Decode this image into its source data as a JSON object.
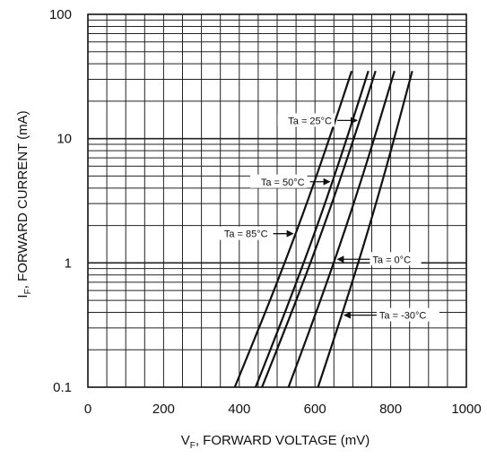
{
  "chart_data": {
    "type": "line",
    "title": "",
    "x_axis": {
      "label_main": "V",
      "label_sub": "F",
      "label_rest": ", FORWARD VOLTAGE (mV)",
      "range": [
        0,
        1000
      ],
      "ticks": [
        "0",
        "200",
        "400",
        "600",
        "800",
        "1000"
      ],
      "tick_values": [
        0,
        200,
        400,
        600,
        800,
        1000
      ]
    },
    "y_axis": {
      "label_main": "I",
      "label_sub": "F",
      "label_rest": ", FORWARD CURRENT (mA)",
      "scale": "log",
      "range": [
        0.1,
        100
      ],
      "ticks": [
        "0.1",
        "1",
        "10",
        "100"
      ],
      "tick_values": [
        0.1,
        1,
        10,
        100
      ]
    },
    "grid": true,
    "series": [
      {
        "name": "Ta = 85°C",
        "points": [
          [
            388,
            0.1
          ],
          [
            697,
            35
          ]
        ]
      },
      {
        "name": "Ta = 50°C",
        "points": [
          [
            443,
            0.1
          ],
          [
            741,
            35
          ]
        ]
      },
      {
        "name": "Ta = 25°C",
        "points": [
          [
            460,
            0.1
          ],
          [
            760,
            35
          ]
        ]
      },
      {
        "name": "Ta = 0°C",
        "points": [
          [
            530,
            0.1
          ],
          [
            810,
            35
          ]
        ]
      },
      {
        "name": "Ta = -30°C",
        "points": [
          [
            608,
            0.1
          ],
          [
            857,
            35
          ]
        ]
      }
    ],
    "annotations": [
      {
        "text": "Ta = 25°C",
        "arrow_to_series": "Ta = 25°C",
        "side": "left",
        "at_y": 14
      },
      {
        "text": "Ta = 50°C",
        "arrow_to_series": "Ta = 50°C",
        "side": "left",
        "at_y": 4.5
      },
      {
        "text": "Ta = 85°C",
        "arrow_to_series": "Ta = 85°C",
        "side": "left",
        "at_y": 1.72
      },
      {
        "text": "Ta = 0°C",
        "arrow_to_series": "Ta = 0°C",
        "side": "right",
        "at_y": 1.07
      },
      {
        "text": "Ta = -30°C",
        "arrow_to_series": "Ta = -30°C",
        "side": "right",
        "at_y": 0.38
      }
    ]
  }
}
